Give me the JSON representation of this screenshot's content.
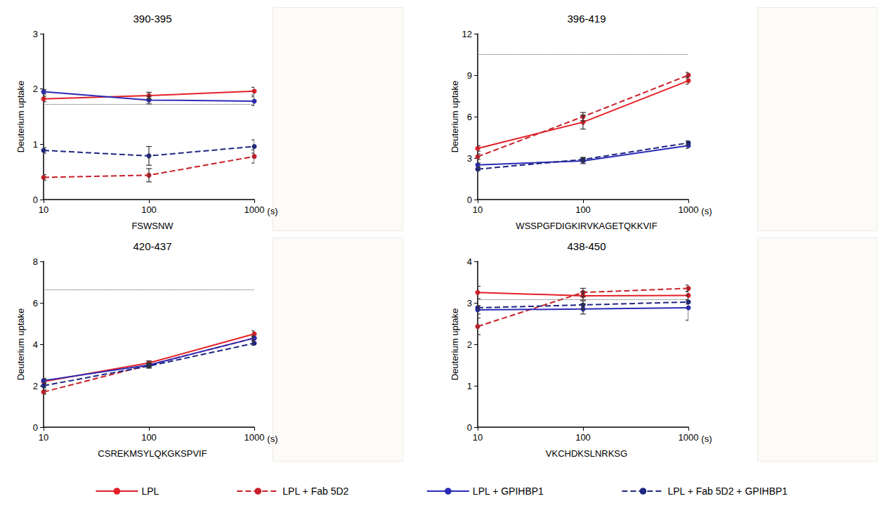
{
  "chart_data": [
    {
      "type": "line",
      "title": "390-395",
      "x_label": "FSWSNW",
      "x_unit_label": "(s)",
      "y_label": "Deuterium uptake",
      "x": [
        10,
        100,
        1000
      ],
      "xlim": [
        10,
        1000
      ],
      "xticks": [
        10,
        100,
        1000
      ],
      "log": "x",
      "ylim": [
        0,
        3
      ],
      "yticks": [
        0,
        1,
        2,
        3
      ],
      "grid": false,
      "legend": "bottom",
      "max_uptake": 1.73,
      "series": [
        {
          "name": "LPL",
          "color": "#e41f26",
          "line_style": "solid",
          "marker": "circle",
          "values": [
            1.82,
            1.88,
            1.96
          ],
          "errors": [
            0.05,
            0.06,
            0.07
          ]
        },
        {
          "name": "LPL + Fab 5D2",
          "color": "#c8202a",
          "line_style": "dashed",
          "marker": "circle",
          "values": [
            0.4,
            0.44,
            0.78
          ],
          "errors": [
            0.05,
            0.12,
            0.12
          ]
        },
        {
          "name": "LPL + GPIHBP1",
          "color": "#2b2bb8",
          "line_style": "solid",
          "marker": "circle",
          "values": [
            1.95,
            1.8,
            1.78
          ],
          "errors": [
            0.04,
            0.07,
            0.08
          ]
        },
        {
          "name": "LPL + Fab 5D2 + GPIHBP1",
          "color": "#1f2683",
          "line_style": "dashed",
          "marker": "circle",
          "values": [
            0.89,
            0.79,
            0.96
          ],
          "errors": [
            0.05,
            0.17,
            0.12
          ]
        }
      ]
    },
    {
      "type": "line",
      "title": "396-419",
      "x_label": "WSSPGFDIGKIRVKAGETQKKVIF",
      "x_unit_label": "(s)",
      "y_label": "Deuterium uptake",
      "x": [
        10,
        100,
        1000
      ],
      "xlim": [
        10,
        1000
      ],
      "xticks": [
        10,
        100,
        1000
      ],
      "log": "x",
      "ylim": [
        0,
        12
      ],
      "yticks": [
        0,
        3,
        6,
        9,
        12
      ],
      "grid": false,
      "legend": "bottom",
      "max_uptake": 10.5,
      "series": [
        {
          "name": "LPL",
          "color": "#e41f26",
          "line_style": "solid",
          "marker": "circle",
          "values": [
            3.7,
            5.6,
            8.6
          ],
          "errors": [
            0.2,
            0.5,
            0.25
          ]
        },
        {
          "name": "LPL + Fab 5D2",
          "color": "#c8202a",
          "line_style": "dashed",
          "marker": "circle",
          "values": [
            3.1,
            6.0,
            9.0
          ],
          "errors": [
            0.2,
            0.3,
            0.2
          ]
        },
        {
          "name": "LPL + GPIHBP1",
          "color": "#2b2bb8",
          "line_style": "solid",
          "marker": "circle",
          "values": [
            2.5,
            2.8,
            3.9
          ],
          "errors": [
            0.15,
            0.2,
            0.2
          ]
        },
        {
          "name": "LPL + Fab 5D2 + GPIHBP1",
          "color": "#1f2683",
          "line_style": "dashed",
          "marker": "circle",
          "values": [
            2.2,
            2.9,
            4.1
          ],
          "errors": [
            0.1,
            0.15,
            0.15
          ]
        }
      ]
    },
    {
      "type": "line",
      "title": "420-437",
      "x_label": "CSREKMSYLQKGKSPVIF",
      "x_unit_label": "(s)",
      "y_label": "Deuterium uptake",
      "x": [
        10,
        100,
        1000
      ],
      "xlim": [
        10,
        1000
      ],
      "xticks": [
        10,
        100,
        1000
      ],
      "log": "x",
      "ylim": [
        0,
        8
      ],
      "yticks": [
        0,
        2,
        4,
        6,
        8
      ],
      "grid": false,
      "legend": "bottom",
      "max_uptake": 6.65,
      "series": [
        {
          "name": "LPL",
          "color": "#e41f26",
          "line_style": "solid",
          "marker": "circle",
          "values": [
            2.2,
            3.1,
            4.5
          ],
          "errors": [
            0.1,
            0.1,
            0.15
          ]
        },
        {
          "name": "LPL + Fab 5D2",
          "color": "#c8202a",
          "line_style": "dashed",
          "marker": "circle",
          "values": [
            1.7,
            3.0,
            4.3
          ],
          "errors": [
            0.1,
            0.1,
            0.1
          ]
        },
        {
          "name": "LPL + GPIHBP1",
          "color": "#2b2bb8",
          "line_style": "solid",
          "marker": "circle",
          "values": [
            2.25,
            3.0,
            4.3
          ],
          "errors": [
            0.1,
            0.1,
            0.1
          ]
        },
        {
          "name": "LPL + Fab 5D2 + GPIHBP1",
          "color": "#1f2683",
          "line_style": "dashed",
          "marker": "circle",
          "values": [
            2.0,
            2.95,
            4.05
          ],
          "errors": [
            0.1,
            0.1,
            0.1
          ]
        }
      ]
    },
    {
      "type": "line",
      "title": "438-450",
      "x_label": "VKCHDKSLNRKSG",
      "x_unit_label": "(s)",
      "y_label": "Deuterium uptake",
      "x": [
        10,
        100,
        1000
      ],
      "xlim": [
        10,
        1000
      ],
      "xticks": [
        10,
        100,
        1000
      ],
      "log": "x",
      "ylim": [
        0,
        4
      ],
      "yticks": [
        0,
        1,
        2,
        3,
        4
      ],
      "grid": false,
      "legend": "bottom",
      "max_uptake": 3.08,
      "series": [
        {
          "name": "LPL",
          "color": "#e41f26",
          "line_style": "solid",
          "marker": "circle",
          "values": [
            3.25,
            3.17,
            3.18
          ],
          "errors": [
            0.15,
            0.1,
            0.1
          ]
        },
        {
          "name": "LPL + Fab 5D2",
          "color": "#c8202a",
          "line_style": "dashed",
          "marker": "circle",
          "values": [
            2.43,
            3.25,
            3.35
          ],
          "errors": [
            0.2,
            0.1,
            0.08
          ]
        },
        {
          "name": "LPL + GPIHBP1",
          "color": "#2b2bb8",
          "line_style": "solid",
          "marker": "circle",
          "values": [
            2.83,
            2.85,
            2.88
          ],
          "errors": [
            0.1,
            0.12,
            0.3
          ]
        },
        {
          "name": "LPL + Fab 5D2 + GPIHBP1",
          "color": "#1f2683",
          "line_style": "dashed",
          "marker": "circle",
          "values": [
            2.88,
            2.95,
            3.02
          ],
          "errors": [
            0.05,
            0.1,
            0.05
          ]
        }
      ]
    }
  ]
}
